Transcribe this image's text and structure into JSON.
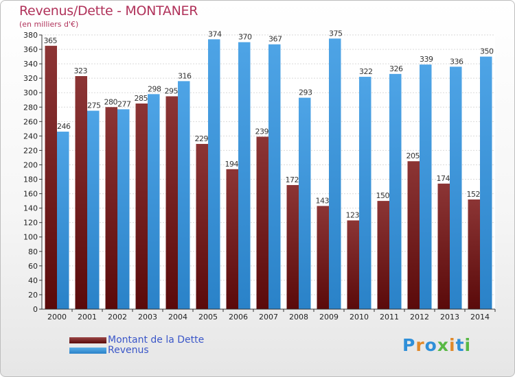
{
  "title": "Revenus/Dette - MONTANER",
  "subtitle": "(en milliers d'€)",
  "legend": [
    {
      "label": "Montant de la Dette",
      "color": "#7a1f1f"
    },
    {
      "label": "Revenus",
      "color": "#3d98dc"
    }
  ],
  "logo": {
    "text": "Proxiti",
    "letters": [
      "P",
      "r",
      "o",
      "x",
      "i",
      "t",
      "i"
    ],
    "colors": [
      "#2f8fd8",
      "#e0892a",
      "#2f8fd8",
      "#58b845",
      "#e0892a",
      "#2f8fd8",
      "#58b845"
    ]
  },
  "chart_data": {
    "type": "bar",
    "title": "Revenus/Dette - MONTANER",
    "subtitle": "(en milliers d'€)",
    "categories": [
      "2000",
      "2001",
      "2002",
      "2003",
      "2004",
      "2005",
      "2006",
      "2007",
      "2008",
      "2009",
      "2010",
      "2011",
      "2012",
      "2013",
      "2014"
    ],
    "series": [
      {
        "name": "Montant de la Dette",
        "color": "#7a1f1f",
        "values": [
          365,
          323,
          280,
          285,
          295,
          229,
          194,
          239,
          172,
          143,
          123,
          150,
          205,
          174,
          152
        ]
      },
      {
        "name": "Revenus",
        "color": "#3d98dc",
        "values": [
          246,
          275,
          277,
          298,
          316,
          374,
          370,
          367,
          293,
          375,
          322,
          326,
          339,
          336,
          350
        ]
      }
    ],
    "ylim": [
      0,
      380
    ],
    "ytick_step": 20,
    "grid": true,
    "legend_position": "bottom-left"
  }
}
